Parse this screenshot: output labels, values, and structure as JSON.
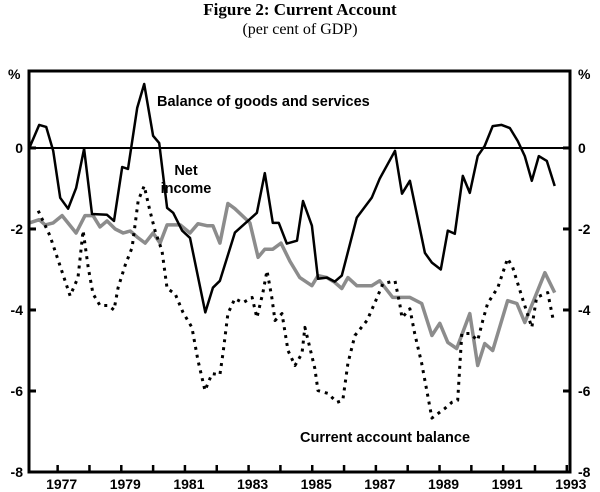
{
  "chart_data": {
    "type": "line",
    "title": "Figure 2: Current Account",
    "subtitle": "(per cent of GDP)",
    "ylabel_left": "%",
    "ylabel_right": "%",
    "xlabel": "",
    "xlim": [
      1976.1,
      1993.1
    ],
    "ylim": [
      -8,
      1.9
    ],
    "grid": false,
    "zero_line": true,
    "y_ticks": [
      0,
      -2,
      -4,
      -6,
      -8
    ],
    "y_tick_labels": [
      "0",
      "-2",
      "-4",
      "-6",
      "-8"
    ],
    "x_ticks": [
      1977,
      1978,
      1979,
      1980,
      1981,
      1982,
      1983,
      1984,
      1985,
      1986,
      1987,
      1988,
      1989,
      1990,
      1991,
      1992,
      1993
    ],
    "x_tick_labels": [
      "1977",
      "1979",
      "1981",
      "1983",
      "1985",
      "1987",
      "1989",
      "1991",
      "1993"
    ],
    "x_tick_label_years": [
      1977,
      1979,
      1981,
      1983,
      1985,
      1987,
      1989,
      1991,
      1993
    ],
    "series": [
      {
        "name": "Balance of goods and services",
        "color": "#000000",
        "style": "solid",
        "x": [
          1976.11,
          1976.42,
          1976.64,
          1976.86,
          1977.08,
          1977.33,
          1977.58,
          1977.83,
          1978.08,
          1978.55,
          1978.77,
          1979.03,
          1979.21,
          1979.5,
          1979.72,
          1980.0,
          1980.19,
          1980.44,
          1980.63,
          1980.91,
          1981.16,
          1981.64,
          1981.88,
          1982.1,
          1982.57,
          1983.26,
          1983.51,
          1983.76,
          1983.95,
          1984.2,
          1984.52,
          1984.71,
          1984.99,
          1985.18,
          1985.46,
          1985.71,
          1985.93,
          1986.4,
          1986.87,
          1987.12,
          1987.6,
          1987.82,
          1988.07,
          1988.54,
          1988.76,
          1989.04,
          1989.26,
          1989.48,
          1989.73,
          1989.95,
          1990.2,
          1990.42,
          1990.67,
          1990.95,
          1991.21,
          1991.46,
          1991.68,
          1991.9,
          1992.12,
          1992.37,
          1992.62
        ],
        "y": [
          0,
          0.57,
          0.52,
          -0.07,
          -1.23,
          -1.5,
          -0.99,
          -0.02,
          -1.63,
          -1.65,
          -1.8,
          -0.47,
          -0.52,
          0.99,
          1.58,
          0.3,
          0.12,
          -1.48,
          -1.6,
          -2.04,
          -2.22,
          -4.06,
          -3.45,
          -3.28,
          -2.09,
          -1.6,
          -0.62,
          -1.85,
          -1.85,
          -2.36,
          -2.29,
          -1.31,
          -1.92,
          -3.23,
          -3.2,
          -3.3,
          -3.15,
          -1.72,
          -1.23,
          -0.76,
          -0.07,
          -1.13,
          -0.81,
          -2.59,
          -2.83,
          -3.0,
          -2.04,
          -2.12,
          -0.69,
          -1.11,
          -0.2,
          0.05,
          0.54,
          0.57,
          0.49,
          0.17,
          -0.2,
          -0.81,
          -0.2,
          -0.32,
          -0.94
        ]
      },
      {
        "name": "Net income",
        "color": "#8c8c8c",
        "style": "solid",
        "x": [
          1976.11,
          1976.42,
          1976.61,
          1976.86,
          1977.14,
          1977.58,
          1977.86,
          1978.11,
          1978.33,
          1978.55,
          1978.81,
          1979.06,
          1979.28,
          1979.5,
          1979.75,
          1980.0,
          1980.22,
          1980.44,
          1980.85,
          1981.16,
          1981.41,
          1981.69,
          1981.88,
          1982.1,
          1982.35,
          1982.57,
          1983.04,
          1983.3,
          1983.51,
          1983.76,
          1984.02,
          1984.3,
          1984.61,
          1984.99,
          1985.18,
          1985.46,
          1985.71,
          1985.93,
          1986.12,
          1986.4,
          1986.87,
          1987.12,
          1987.53,
          1988.07,
          1988.44,
          1988.76,
          1989.01,
          1989.26,
          1989.54,
          1989.95,
          1990.2,
          1990.42,
          1990.67,
          1991.14,
          1991.43,
          1991.68,
          1992.31,
          1992.62
        ],
        "y": [
          -1.85,
          -1.77,
          -1.9,
          -1.85,
          -1.67,
          -2.1,
          -1.67,
          -1.67,
          -1.95,
          -1.8,
          -2.0,
          -2.1,
          -2.05,
          -2.2,
          -2.35,
          -2.1,
          -2.35,
          -1.9,
          -1.9,
          -2.1,
          -1.87,
          -1.92,
          -1.92,
          -2.35,
          -1.37,
          -1.5,
          -1.85,
          -2.7,
          -2.5,
          -2.5,
          -2.35,
          -2.8,
          -3.2,
          -3.4,
          -3.15,
          -3.2,
          -3.32,
          -3.47,
          -3.2,
          -3.4,
          -3.4,
          -3.28,
          -3.69,
          -3.69,
          -3.84,
          -4.63,
          -4.33,
          -4.8,
          -4.95,
          -4.09,
          -5.37,
          -4.83,
          -5.0,
          -3.77,
          -3.84,
          -4.31,
          -3.08,
          -3.57
        ]
      },
      {
        "name": "Current account balance",
        "color": "#000000",
        "style": "dotted",
        "x": [
          1976.39,
          1976.76,
          1977.02,
          1977.39,
          1977.64,
          1977.8,
          1977.96,
          1978.11,
          1978.33,
          1978.59,
          1978.77,
          1978.9,
          1979.12,
          1979.34,
          1979.53,
          1979.72,
          1979.9,
          1980.06,
          1980.28,
          1980.44,
          1980.69,
          1980.94,
          1981.22,
          1981.41,
          1981.63,
          1981.85,
          1982.1,
          1982.2,
          1982.35,
          1982.57,
          1982.82,
          1983.11,
          1983.26,
          1983.45,
          1983.58,
          1983.73,
          1983.83,
          1984.05,
          1984.24,
          1984.46,
          1984.68,
          1984.77,
          1984.87,
          1985.08,
          1985.18,
          1985.49,
          1985.78,
          1985.96,
          1986.12,
          1986.34,
          1986.72,
          1986.97,
          1987.22,
          1987.6,
          1987.75,
          1987.82,
          1988.07,
          1988.22,
          1988.44,
          1988.6,
          1988.76,
          1989.17,
          1989.39,
          1989.57,
          1989.7,
          1989.95,
          1990.2,
          1990.36,
          1990.51,
          1990.83,
          1991.14,
          1991.3,
          1991.58,
          1991.9,
          1992.05,
          1992.4,
          1992.56
        ],
        "y": [
          -1.55,
          -2.17,
          -2.78,
          -3.65,
          -3.2,
          -2.04,
          -2.95,
          -3.6,
          -3.89,
          -3.89,
          -4.0,
          -3.45,
          -2.9,
          -2.46,
          -1.3,
          -0.94,
          -1.55,
          -2.04,
          -2.54,
          -3.47,
          -3.6,
          -4.06,
          -4.43,
          -5.25,
          -5.99,
          -5.57,
          -5.6,
          -5.05,
          -4.09,
          -3.72,
          -3.82,
          -3.69,
          -4.19,
          -3.57,
          -3.03,
          -3.69,
          -4.26,
          -4.09,
          -5.0,
          -5.37,
          -5.07,
          -4.43,
          -4.75,
          -5.44,
          -5.99,
          -6.06,
          -6.28,
          -6.23,
          -5.32,
          -4.63,
          -4.26,
          -3.82,
          -3.35,
          -3.28,
          -3.84,
          -4.19,
          -3.97,
          -4.58,
          -5.32,
          -5.99,
          -6.67,
          -6.43,
          -6.28,
          -6.23,
          -4.58,
          -4.58,
          -4.75,
          -4.26,
          -3.84,
          -3.45,
          -2.73,
          -2.95,
          -3.65,
          -4.43,
          -3.69,
          -3.57,
          -4.19
        ]
      }
    ],
    "annotations": {
      "goods_services": "Balance of goods and services",
      "net_income_1": "Net",
      "net_income_2": "income",
      "current_account": "Current account balance"
    }
  }
}
